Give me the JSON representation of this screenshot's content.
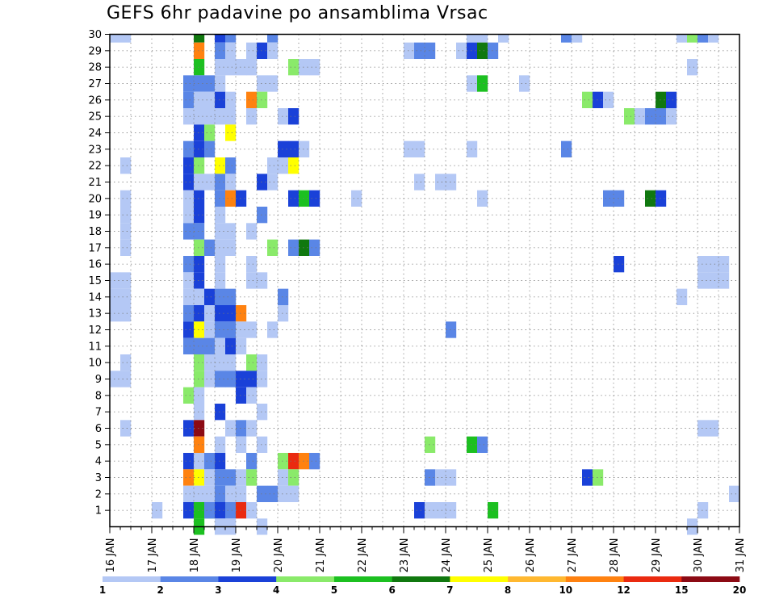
{
  "chart_data": {
    "type": "heatmap",
    "title": "GEFS 6hr padavine po ansamblima Vrsac",
    "x_tick_labels": [
      "16 JAN",
      "17 JAN",
      "18 JAN",
      "19 JAN",
      "20 JAN",
      "21 JAN",
      "22 JAN",
      "23 JAN",
      "24 JAN",
      "25 JAN",
      "26 JAN",
      "27 JAN",
      "28 JAN",
      "29 JAN",
      "30 JAN",
      "31 JAN"
    ],
    "y_tick_labels": [
      "1",
      "2",
      "3",
      "4",
      "5",
      "6",
      "7",
      "8",
      "9",
      "10",
      "11",
      "12",
      "13",
      "14",
      "15",
      "16",
      "17",
      "18",
      "19",
      "20",
      "21",
      "22",
      "23",
      "24",
      "25",
      "26",
      "27",
      "28",
      "29",
      "30"
    ],
    "x_range_days": [
      16,
      31
    ],
    "y_range_members": [
      0,
      30
    ],
    "grid": true,
    "time_step_hours": 6,
    "colorbar": {
      "labels": [
        "1",
        "2",
        "3",
        "4",
        "5",
        "6",
        "7",
        "8",
        "10",
        "12",
        "15",
        "20"
      ],
      "colors": [
        "#b4c8f5",
        "#5a86e6",
        "#1a41d8",
        "#8aea6a",
        "#1cc020",
        "#10780f",
        "#ffff00",
        "#ffb830",
        "#ff8210",
        "#ea2a10",
        "#8c0a14"
      ]
    },
    "cells": [
      {
        "m": 1,
        "t": [
          [
            18,
            4
          ],
          [
            18.25,
            4
          ]
        ]
      },
      {
        "m": 30,
        "t": [
          [
            16,
            1
          ],
          [
            16.25,
            1
          ],
          [
            18,
            6
          ],
          [
            18.5,
            3
          ],
          [
            18.75,
            2
          ],
          [
            19.75,
            2
          ],
          [
            24.5,
            1
          ],
          [
            24.75,
            1
          ],
          [
            25.25,
            1
          ],
          [
            26.75,
            2
          ],
          [
            27,
            1
          ],
          [
            29.5,
            1
          ],
          [
            29.75,
            4
          ],
          [
            30,
            2
          ],
          [
            30.25,
            1
          ]
        ]
      },
      {
        "m": 29,
        "t": [
          [
            18,
            9
          ],
          [
            18.5,
            2
          ],
          [
            18.75,
            1
          ],
          [
            19.25,
            1
          ],
          [
            19.5,
            3
          ],
          [
            19.75,
            1
          ],
          [
            23,
            1
          ],
          [
            23.25,
            2
          ],
          [
            23.5,
            2
          ],
          [
            24.25,
            1
          ],
          [
            24.5,
            3
          ],
          [
            24.75,
            6
          ],
          [
            25,
            2
          ]
        ]
      },
      {
        "m": 28,
        "t": [
          [
            18,
            5
          ],
          [
            18.5,
            1
          ],
          [
            18.75,
            1
          ],
          [
            19,
            1
          ],
          [
            19.25,
            1
          ],
          [
            20.25,
            4
          ],
          [
            20.5,
            1
          ],
          [
            20.75,
            1
          ],
          [
            29.75,
            1
          ]
        ]
      },
      {
        "m": 27,
        "t": [
          [
            17.75,
            2
          ],
          [
            18,
            2
          ],
          [
            18.25,
            2
          ],
          [
            18.5,
            1
          ],
          [
            19.5,
            1
          ],
          [
            19.75,
            1
          ],
          [
            24.5,
            1
          ],
          [
            24.75,
            5
          ],
          [
            25.75,
            1
          ]
        ]
      },
      {
        "m": 26,
        "t": [
          [
            17.75,
            2
          ],
          [
            18,
            1
          ],
          [
            18.25,
            1
          ],
          [
            18.5,
            3
          ],
          [
            18.75,
            1
          ],
          [
            19.25,
            9
          ],
          [
            19.5,
            4
          ],
          [
            27.25,
            4
          ],
          [
            27.5,
            3
          ],
          [
            27.75,
            1
          ],
          [
            29,
            6
          ],
          [
            29.25,
            3
          ]
        ]
      },
      {
        "m": 25,
        "t": [
          [
            17.75,
            1
          ],
          [
            18,
            1
          ],
          [
            18.25,
            1
          ],
          [
            18.5,
            1
          ],
          [
            18.75,
            1
          ],
          [
            19.25,
            1
          ],
          [
            20,
            1
          ],
          [
            20.25,
            3
          ],
          [
            28.25,
            4
          ],
          [
            28.5,
            1
          ],
          [
            28.75,
            2
          ],
          [
            29,
            2
          ],
          [
            29.25,
            1
          ]
        ]
      },
      {
        "m": 24,
        "t": [
          [
            18,
            3
          ],
          [
            18.25,
            4
          ],
          [
            18.75,
            7
          ]
        ]
      },
      {
        "m": 23,
        "t": [
          [
            17.75,
            2
          ],
          [
            18,
            3
          ],
          [
            18.25,
            2
          ],
          [
            20,
            3
          ],
          [
            20.25,
            3
          ],
          [
            20.5,
            1
          ],
          [
            23,
            1
          ],
          [
            23.25,
            1
          ],
          [
            24.5,
            1
          ],
          [
            26.75,
            2
          ]
        ]
      },
      {
        "m": 22,
        "t": [
          [
            16.25,
            1
          ],
          [
            17.75,
            3
          ],
          [
            18,
            4
          ],
          [
            18.5,
            7
          ],
          [
            18.75,
            2
          ],
          [
            19.75,
            1
          ],
          [
            20,
            1
          ],
          [
            20.25,
            7
          ]
        ]
      },
      {
        "m": 21,
        "t": [
          [
            17.75,
            3
          ],
          [
            18,
            1
          ],
          [
            18.25,
            1
          ],
          [
            18.5,
            2
          ],
          [
            18.75,
            1
          ],
          [
            19.5,
            3
          ],
          [
            19.75,
            1
          ],
          [
            23.25,
            1
          ],
          [
            23.75,
            1
          ],
          [
            24,
            1
          ]
        ]
      },
      {
        "m": 20,
        "t": [
          [
            16.25,
            1
          ],
          [
            17.75,
            1
          ],
          [
            18,
            3
          ],
          [
            18.5,
            2
          ],
          [
            18.75,
            9
          ],
          [
            19,
            3
          ],
          [
            20.25,
            3
          ],
          [
            20.5,
            5
          ],
          [
            20.75,
            3
          ],
          [
            21.75,
            1
          ],
          [
            24.75,
            1
          ],
          [
            27.75,
            2
          ],
          [
            28,
            2
          ],
          [
            28.75,
            6
          ],
          [
            29,
            3
          ]
        ]
      },
      {
        "m": 19,
        "t": [
          [
            16.25,
            1
          ],
          [
            17.75,
            1
          ],
          [
            18,
            3
          ],
          [
            18.5,
            1
          ],
          [
            19.5,
            2
          ]
        ]
      },
      {
        "m": 18,
        "t": [
          [
            16.25,
            1
          ],
          [
            17.75,
            2
          ],
          [
            18,
            2
          ],
          [
            18.5,
            1
          ],
          [
            18.75,
            1
          ],
          [
            19.25,
            1
          ]
        ]
      },
      {
        "m": 17,
        "t": [
          [
            16.25,
            1
          ],
          [
            18,
            4
          ],
          [
            18.25,
            2
          ],
          [
            18.5,
            1
          ],
          [
            18.75,
            1
          ],
          [
            19.75,
            4
          ],
          [
            20.25,
            2
          ],
          [
            20.5,
            6
          ],
          [
            20.75,
            2
          ]
        ]
      },
      {
        "m": 16,
        "t": [
          [
            17.75,
            2
          ],
          [
            18,
            3
          ],
          [
            18.5,
            1
          ],
          [
            19.25,
            1
          ],
          [
            28,
            3
          ],
          [
            30,
            1
          ],
          [
            30.25,
            1
          ],
          [
            30.5,
            1
          ]
        ]
      },
      {
        "m": 15,
        "t": [
          [
            16,
            1
          ],
          [
            16.25,
            1
          ],
          [
            17.75,
            1
          ],
          [
            18,
            3
          ],
          [
            18.5,
            1
          ],
          [
            19.25,
            1
          ],
          [
            19.5,
            1
          ],
          [
            30,
            1
          ],
          [
            30.25,
            1
          ],
          [
            30.5,
            1
          ]
        ]
      },
      {
        "m": 14,
        "t": [
          [
            16,
            1
          ],
          [
            16.25,
            1
          ],
          [
            17.75,
            1
          ],
          [
            18,
            1
          ],
          [
            18.25,
            3
          ],
          [
            18.5,
            2
          ],
          [
            18.75,
            2
          ],
          [
            20,
            2
          ],
          [
            29.5,
            1
          ]
        ]
      },
      {
        "m": 13,
        "t": [
          [
            16,
            1
          ],
          [
            16.25,
            1
          ],
          [
            17.75,
            2
          ],
          [
            18,
            3
          ],
          [
            18.25,
            1
          ],
          [
            18.5,
            3
          ],
          [
            18.75,
            3
          ],
          [
            19,
            9
          ],
          [
            20,
            1
          ]
        ]
      },
      {
        "m": 12,
        "t": [
          [
            17.75,
            3
          ],
          [
            18,
            7
          ],
          [
            18.25,
            1
          ],
          [
            18.5,
            2
          ],
          [
            18.75,
            2
          ],
          [
            19,
            1
          ],
          [
            19.25,
            1
          ],
          [
            19.75,
            1
          ],
          [
            24,
            2
          ]
        ]
      },
      {
        "m": 11,
        "t": [
          [
            17.75,
            2
          ],
          [
            18,
            2
          ],
          [
            18.25,
            2
          ],
          [
            18.5,
            1
          ],
          [
            18.75,
            3
          ],
          [
            19,
            1
          ]
        ]
      },
      {
        "m": 10,
        "t": [
          [
            16.25,
            1
          ],
          [
            18,
            4
          ],
          [
            18.25,
            1
          ],
          [
            18.5,
            1
          ],
          [
            18.75,
            1
          ],
          [
            19.25,
            4
          ],
          [
            19.5,
            1
          ]
        ]
      },
      {
        "m": 9,
        "t": [
          [
            16,
            1
          ],
          [
            16.25,
            1
          ],
          [
            18,
            4
          ],
          [
            18.25,
            1
          ],
          [
            18.5,
            2
          ],
          [
            18.75,
            2
          ],
          [
            19,
            3
          ],
          [
            19.25,
            3
          ],
          [
            19.5,
            1
          ]
        ]
      },
      {
        "m": 8,
        "t": [
          [
            17.75,
            4
          ],
          [
            18,
            1
          ],
          [
            19,
            3
          ],
          [
            19.25,
            1
          ]
        ]
      },
      {
        "m": 7,
        "t": [
          [
            18,
            1
          ],
          [
            18.5,
            3
          ],
          [
            19.5,
            1
          ]
        ]
      },
      {
        "m": 6,
        "t": [
          [
            16.25,
            1
          ],
          [
            17.75,
            3
          ],
          [
            18,
            11
          ],
          [
            18.75,
            1
          ],
          [
            19,
            2
          ],
          [
            19.25,
            1
          ],
          [
            30,
            1
          ],
          [
            30.25,
            1
          ]
        ]
      },
      {
        "m": 5,
        "t": [
          [
            18,
            9
          ],
          [
            18.5,
            1
          ],
          [
            19,
            1
          ],
          [
            19.5,
            1
          ],
          [
            23.5,
            4
          ],
          [
            24.5,
            5
          ],
          [
            24.75,
            2
          ]
        ]
      },
      {
        "m": 4,
        "t": [
          [
            17.75,
            3
          ],
          [
            18,
            1
          ],
          [
            18.25,
            2
          ],
          [
            18.5,
            3
          ],
          [
            19.25,
            2
          ],
          [
            20,
            4
          ],
          [
            20.25,
            10
          ],
          [
            20.5,
            9
          ],
          [
            20.75,
            2
          ]
        ]
      },
      {
        "m": 3,
        "t": [
          [
            17.75,
            9
          ],
          [
            18,
            7
          ],
          [
            18.25,
            1
          ],
          [
            18.5,
            2
          ],
          [
            18.75,
            2
          ],
          [
            19,
            1
          ],
          [
            19.25,
            4
          ],
          [
            20,
            1
          ],
          [
            20.25,
            4
          ],
          [
            23.5,
            2
          ],
          [
            23.75,
            1
          ],
          [
            24,
            1
          ],
          [
            27.25,
            3
          ],
          [
            27.5,
            4
          ]
        ]
      },
      {
        "m": 2,
        "t": [
          [
            17.75,
            1
          ],
          [
            18,
            1
          ],
          [
            18.25,
            1
          ],
          [
            18.5,
            2
          ],
          [
            18.75,
            1
          ],
          [
            19,
            1
          ],
          [
            19.5,
            2
          ],
          [
            19.75,
            2
          ],
          [
            20,
            1
          ],
          [
            20.25,
            1
          ],
          [
            30.75,
            1
          ]
        ]
      },
      {
        "m": 1,
        "t": [
          [
            17,
            1
          ],
          [
            17.75,
            3
          ],
          [
            18,
            5
          ],
          [
            18.25,
            2
          ],
          [
            18.5,
            3
          ],
          [
            18.75,
            2
          ],
          [
            19,
            10
          ],
          [
            19.25,
            1
          ],
          [
            23.25,
            3
          ],
          [
            23.5,
            1
          ],
          [
            23.75,
            1
          ],
          [
            24,
            1
          ],
          [
            25,
            5
          ],
          [
            30,
            1
          ]
        ]
      },
      {
        "m": 0,
        "t": [
          [
            18,
            5
          ],
          [
            18.5,
            1
          ],
          [
            18.75,
            1
          ],
          [
            19.5,
            1
          ],
          [
            29.75,
            1
          ]
        ]
      }
    ]
  }
}
